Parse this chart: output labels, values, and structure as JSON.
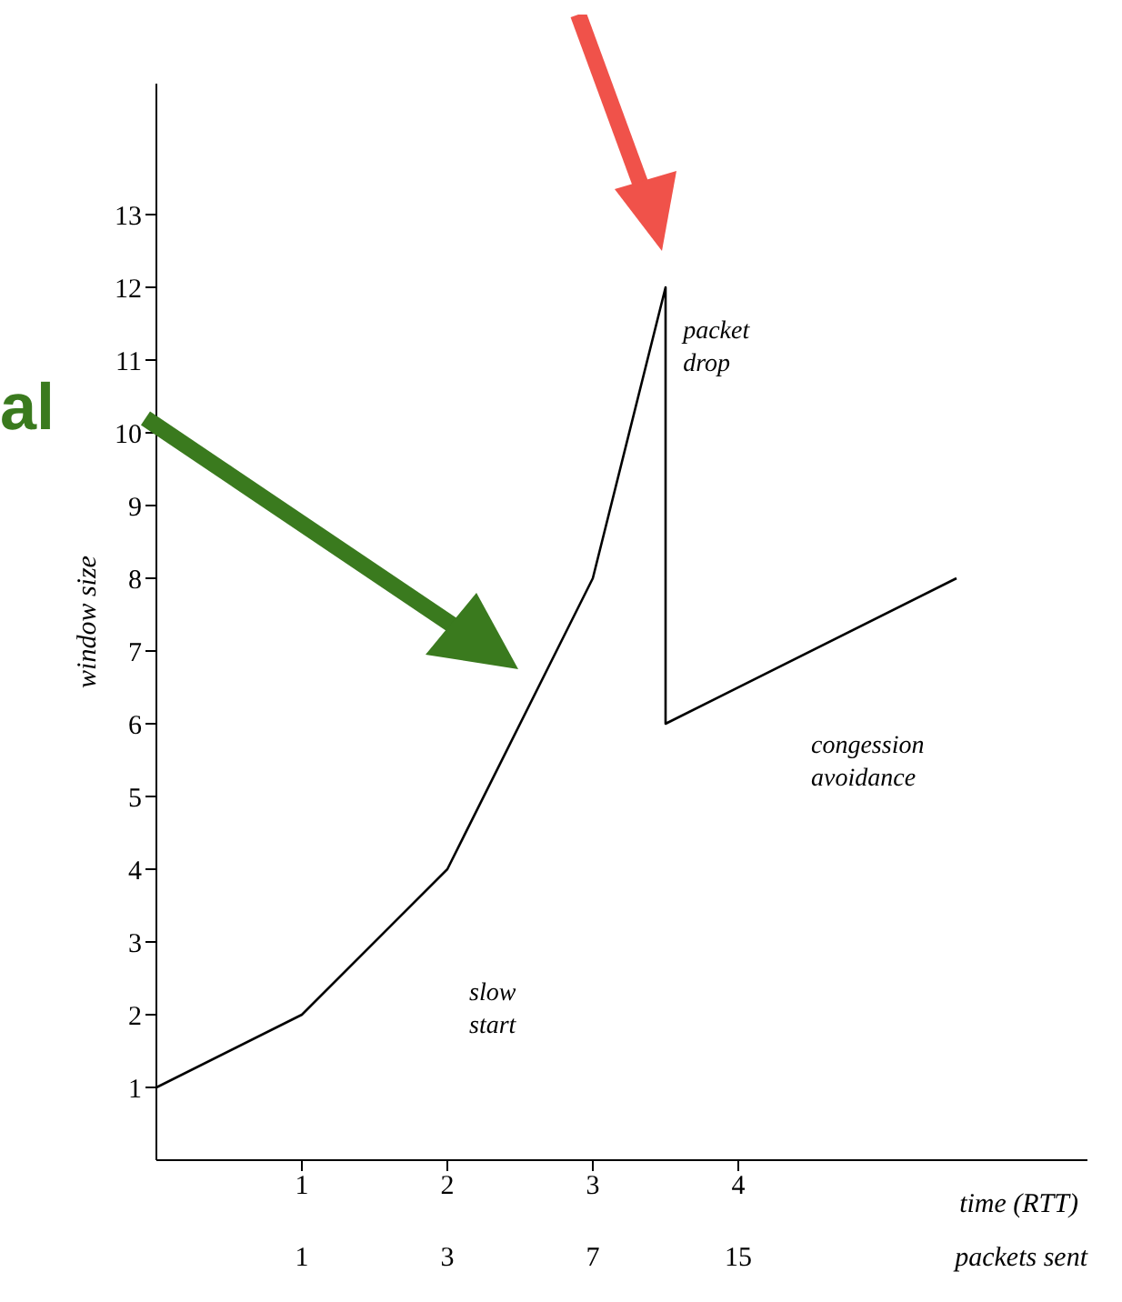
{
  "chart_data": {
    "type": "line",
    "ylabel": "window size",
    "xlabel": "time (RTT)",
    "x": [
      0,
      1,
      2,
      3,
      3.5,
      3.5,
      5.5
    ],
    "series": [
      {
        "color": "#000000",
        "values": [
          1,
          2,
          4,
          8,
          12,
          6,
          8
        ]
      }
    ],
    "xlim": [
      0,
      6.4
    ],
    "xticks": [
      1,
      2,
      3,
      4
    ],
    "ylim": [
      0,
      14.8
    ],
    "yticks": [
      1,
      2,
      3,
      4,
      5,
      6,
      7,
      8,
      9,
      10,
      11,
      12,
      13
    ],
    "marker": "none",
    "line_style": "solid",
    "annotations": [
      "al",
      "packet drop",
      "congession avoidance",
      "slow start",
      "packets sent",
      "1",
      "3",
      "7",
      "15"
    ]
  }
}
